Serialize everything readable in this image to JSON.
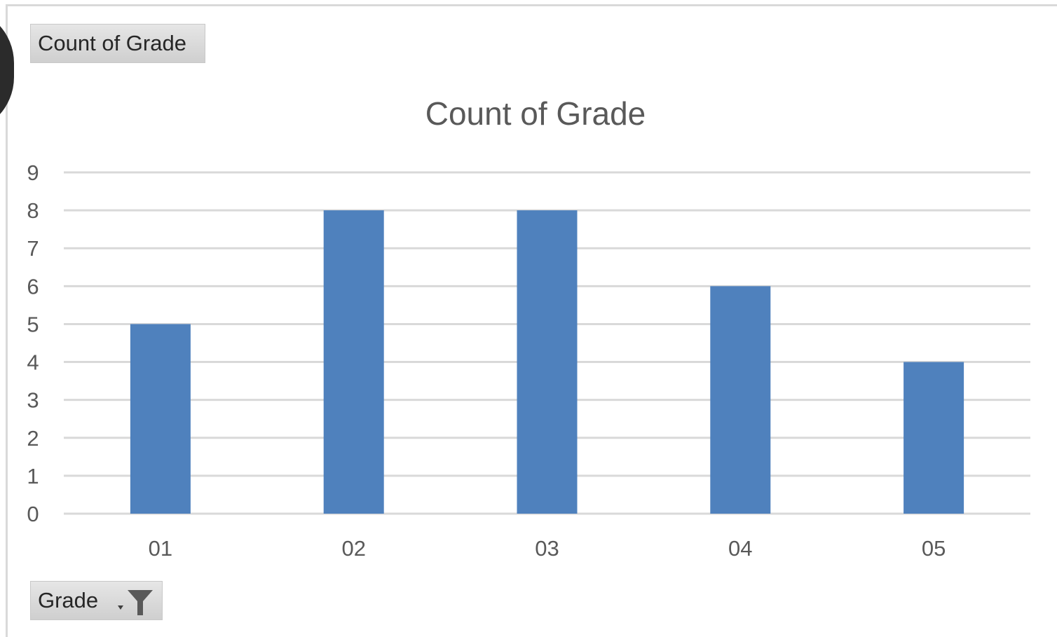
{
  "field_buttons": {
    "value_field": "Count of Grade",
    "axis_field": "Grade"
  },
  "chart_data": {
    "type": "bar",
    "title": "Count of Grade",
    "categories": [
      "01",
      "02",
      "03",
      "04",
      "05"
    ],
    "values": [
      5,
      8,
      8,
      6,
      4
    ],
    "xlabel": "",
    "ylabel": "",
    "ylim": [
      0,
      9
    ],
    "yticks": [
      0,
      1,
      2,
      3,
      4,
      5,
      6,
      7,
      8,
      9
    ],
    "grid": true,
    "legend": "none",
    "colors": {
      "bar": "#4f81bd",
      "grid": "#d9d9d9",
      "text": "#595959"
    }
  }
}
